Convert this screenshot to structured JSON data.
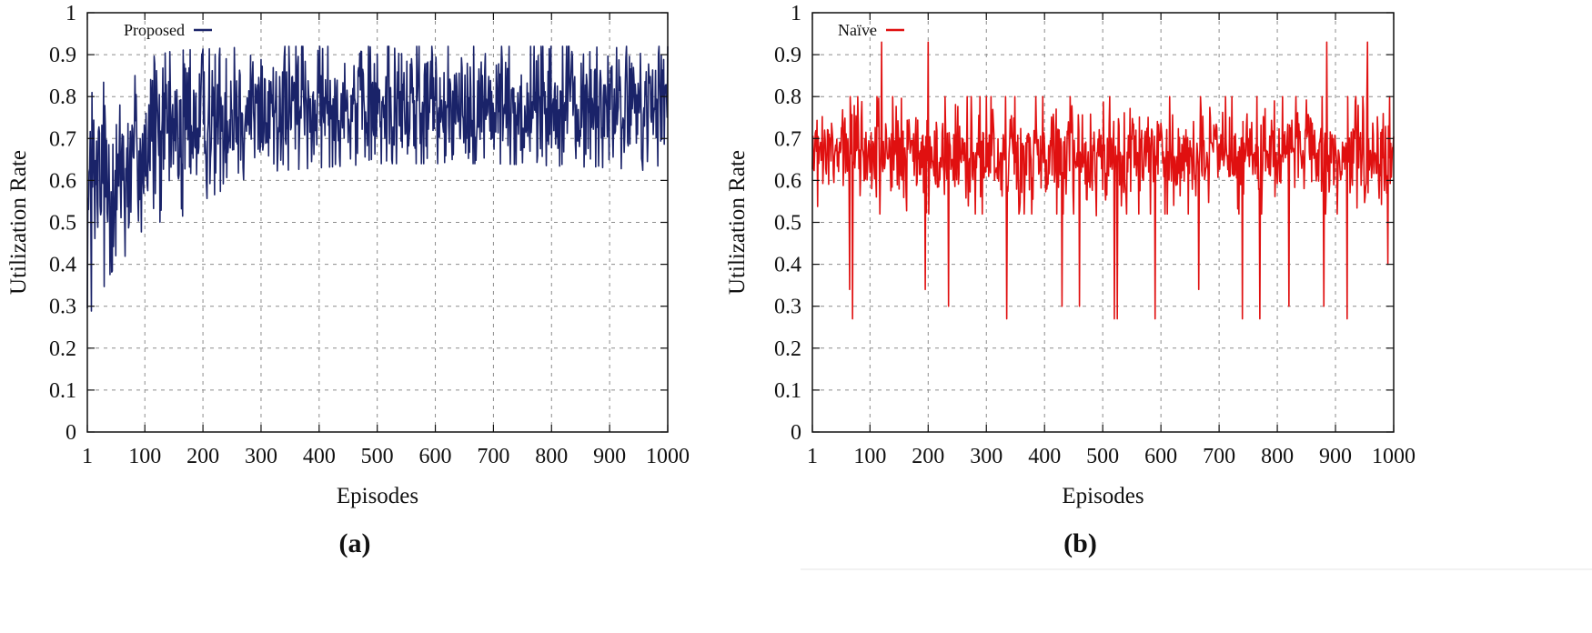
{
  "chart_data": [
    {
      "type": "line",
      "panel_label": "(a)",
      "xlabel": "Episodes",
      "ylabel": "Utilization Rate",
      "xlim": [
        1,
        1000
      ],
      "ylim": [
        0,
        1
      ],
      "xticks": [
        1,
        100,
        200,
        300,
        400,
        500,
        600,
        700,
        800,
        900,
        1000
      ],
      "yticks": [
        0,
        0.1,
        0.2,
        0.3,
        0.4,
        0.5,
        0.6,
        0.7,
        0.8,
        0.9,
        1
      ],
      "ytick_labels": [
        "0",
        "0.1",
        "0.2",
        "0.3",
        "0.4",
        "0.5",
        "0.6",
        "0.7",
        "0.8",
        "0.9",
        "1"
      ],
      "grid": true,
      "legend_position": "top-left",
      "series": [
        {
          "name": "Proposed",
          "color": "#1a2369",
          "trend": [
            [
              1,
              0.55
            ],
            [
              50,
              0.62
            ],
            [
              100,
              0.68
            ],
            [
              150,
              0.72
            ],
            [
              200,
              0.75
            ],
            [
              300,
              0.77
            ],
            [
              500,
              0.78
            ],
            [
              700,
              0.775
            ],
            [
              900,
              0.775
            ],
            [
              1000,
              0.77
            ]
          ],
          "lower": [
            [
              1,
              0.27
            ],
            [
              50,
              0.4
            ],
            [
              100,
              0.46
            ],
            [
              150,
              0.5
            ],
            [
              200,
              0.55
            ],
            [
              250,
              0.59
            ],
            [
              300,
              0.62
            ],
            [
              500,
              0.64
            ],
            [
              700,
              0.64
            ],
            [
              900,
              0.63
            ],
            [
              1000,
              0.62
            ]
          ],
          "upper": [
            [
              1,
              0.8
            ],
            [
              50,
              0.86
            ],
            [
              100,
              0.89
            ],
            [
              150,
              0.91
            ],
            [
              300,
              0.92
            ],
            [
              1000,
              0.92
            ]
          ],
          "spread": [
            [
              1,
              0.26
            ],
            [
              100,
              0.22
            ],
            [
              200,
              0.17
            ],
            [
              300,
              0.15
            ],
            [
              1000,
              0.14
            ]
          ]
        }
      ]
    },
    {
      "type": "line",
      "panel_label": "(b)",
      "xlabel": "Episodes",
      "ylabel": "Utilization Rate",
      "xlim": [
        1,
        1000
      ],
      "ylim": [
        0,
        1
      ],
      "xticks": [
        1,
        100,
        200,
        300,
        400,
        500,
        600,
        700,
        800,
        900,
        1000
      ],
      "yticks": [
        0,
        0.1,
        0.2,
        0.3,
        0.4,
        0.5,
        0.6,
        0.7,
        0.8,
        0.9,
        1
      ],
      "ytick_labels": [
        "0",
        "0.1",
        "0.2",
        "0.3",
        "0.4",
        "0.5",
        "0.6",
        "0.7",
        "0.8",
        "0.9",
        "1"
      ],
      "grid": true,
      "legend_position": "top-left",
      "series": [
        {
          "name": "Naïve",
          "color": "#e01010",
          "trend": [
            [
              1,
              0.66
            ],
            [
              1000,
              0.66
            ]
          ],
          "lower": [
            [
              1,
              0.27
            ],
            [
              1000,
              0.27
            ]
          ],
          "upper": [
            [
              1,
              0.93
            ],
            [
              1000,
              0.93
            ]
          ],
          "spread": [
            [
              1,
              0.1
            ],
            [
              1000,
              0.1
            ]
          ],
          "spikes": [
            {
              "x": 65,
              "y": 0.34
            },
            {
              "x": 70,
              "y": 0.27
            },
            {
              "x": 120,
              "y": 0.93
            },
            {
              "x": 195,
              "y": 0.34
            },
            {
              "x": 200,
              "y": 0.93
            },
            {
              "x": 235,
              "y": 0.3
            },
            {
              "x": 335,
              "y": 0.27
            },
            {
              "x": 430,
              "y": 0.3
            },
            {
              "x": 460,
              "y": 0.3
            },
            {
              "x": 520,
              "y": 0.27
            },
            {
              "x": 525,
              "y": 0.27
            },
            {
              "x": 590,
              "y": 0.27
            },
            {
              "x": 665,
              "y": 0.34
            },
            {
              "x": 740,
              "y": 0.27
            },
            {
              "x": 770,
              "y": 0.27
            },
            {
              "x": 820,
              "y": 0.3
            },
            {
              "x": 880,
              "y": 0.3
            },
            {
              "x": 885,
              "y": 0.93
            },
            {
              "x": 920,
              "y": 0.27
            },
            {
              "x": 955,
              "y": 0.93
            },
            {
              "x": 990,
              "y": 0.4
            }
          ]
        }
      ]
    }
  ]
}
